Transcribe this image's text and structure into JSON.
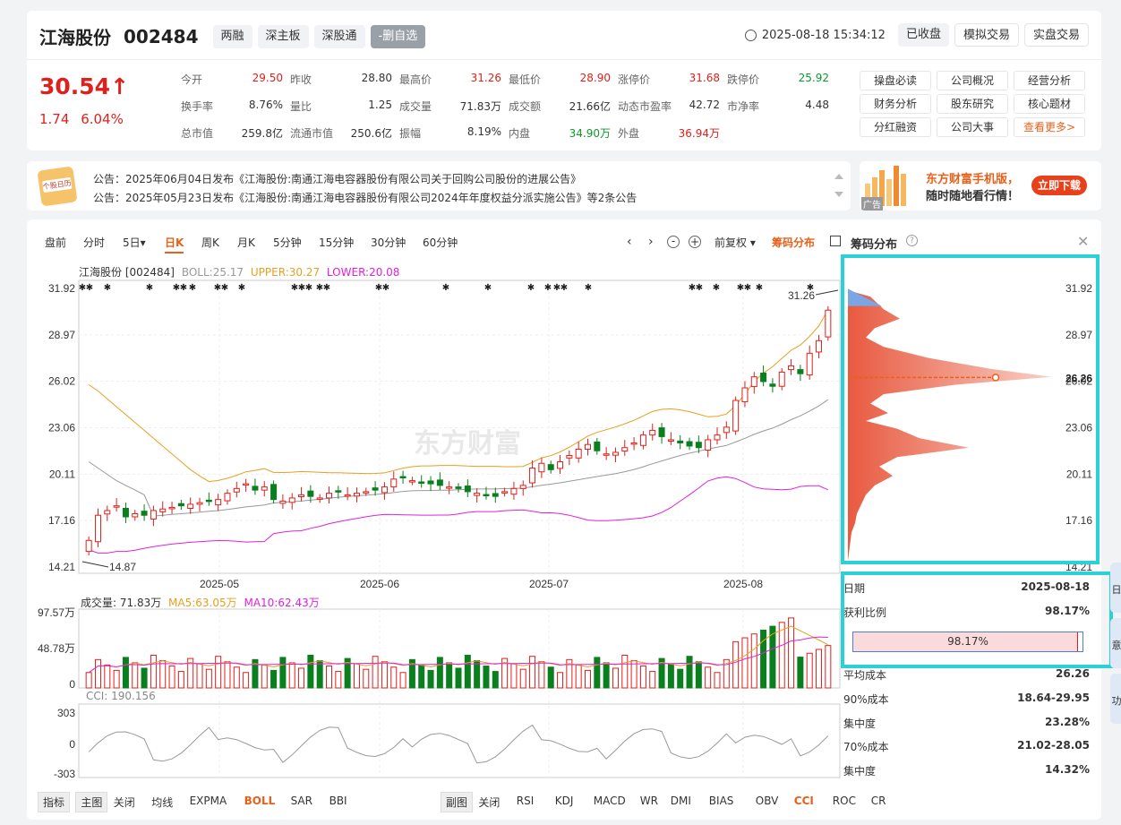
{
  "header": {
    "name": "江海股份",
    "code": "002484",
    "tags": [
      "两融",
      "深主板",
      "深股通",
      "-删自选"
    ],
    "datetime": "2025-08-18 15:34:12",
    "buttons": [
      "已收盘",
      "模拟交易",
      "实盘交易"
    ]
  },
  "quote": {
    "price": "30.54↑",
    "change": "1.74",
    "change_pct": "6.04%",
    "rows": [
      [
        [
          "今开",
          "29.50",
          "r"
        ],
        [
          "昨收",
          "28.80",
          ""
        ],
        [
          "最高价",
          "31.26",
          "r"
        ],
        [
          "最低价",
          "28.90",
          "r"
        ],
        [
          "涨停价",
          "31.68",
          "r"
        ],
        [
          "跌停价",
          "25.92",
          "g"
        ]
      ],
      [
        [
          "换手率",
          "8.76%",
          ""
        ],
        [
          "量比",
          "1.25",
          ""
        ],
        [
          "成交量",
          "71.83万",
          ""
        ],
        [
          "成交额",
          "21.66亿",
          ""
        ],
        [
          "动态市盈率",
          "42.72",
          ""
        ],
        [
          "市净率",
          "4.48",
          ""
        ]
      ],
      [
        [
          "总市值",
          "259.8亿",
          ""
        ],
        [
          "流通市值",
          "250.6亿",
          ""
        ],
        [
          "振幅",
          "8.19%",
          ""
        ],
        [
          "内盘",
          "34.90万",
          "g"
        ],
        [
          "外盘",
          "36.94万",
          "r"
        ],
        [
          "",
          "",
          " "
        ]
      ]
    ]
  },
  "functions": [
    "操盘必读",
    "公司概况",
    "经营分析",
    "财务分析",
    "股东研究",
    "核心题材",
    "分红融资",
    "公司大事",
    "查看更多>"
  ],
  "notices": {
    "icon_text": "个股日历",
    "items": [
      "公告：2025年06月04日发布《江海股份:南通江海电容器股份有限公司关于回购公司股份的进展公告》",
      "公告：2025年05月23日发布《江海股份:南通江海电容器股份有限公司2024年年度权益分派实施公告》等2条公告"
    ]
  },
  "ad": {
    "line1": "东方财富手机版，",
    "line2": "随时随地看行情！",
    "button": "立即下载",
    "tag": "广告"
  },
  "chart_tabs": [
    "盘前",
    "分时",
    "5日▾",
    "日K",
    "周K",
    "月K",
    "5分钟",
    "15分钟",
    "30分钟",
    "60分钟"
  ],
  "chart_tools": {
    "fq": "前复权 ▾",
    "chip": "筹码分布"
  },
  "kline": {
    "legend_name": "江海股份 [002484]",
    "boll": "BOLL:25.17",
    "upper": "UPPER:30.27",
    "lower": "LOWER:20.08",
    "y_ticks": [
      "31.92",
      "28.97",
      "26.02",
      "23.06",
      "20.11",
      "17.16",
      "14.21"
    ],
    "x_ticks": [
      "2025-05",
      "2025-06",
      "2025-07",
      "2025-08"
    ],
    "high_label": "31.26",
    "low_label": "14.87",
    "watermark": "东方财富"
  },
  "volume": {
    "label": "成交量: 71.83万",
    "ma5": "MA5:63.05万",
    "ma10": "MA10:62.43万",
    "y_ticks": [
      "97.57万",
      "48.78万",
      "0"
    ]
  },
  "cci": {
    "label": "CCI: 190.156",
    "y_ticks": [
      "303",
      "0",
      "-303"
    ]
  },
  "bottom_left": [
    "指标",
    "主图",
    "关闭",
    "均线",
    "EXPMA",
    "BOLL",
    "SAR",
    "BBI"
  ],
  "bottom_right": [
    "副图",
    "关闭",
    "RSI",
    "KDJ",
    "MACD",
    "WR",
    "DMI",
    "BIAS",
    "OBV",
    "CCI",
    "ROC",
    "CR"
  ],
  "chip_panel": {
    "title": "筹码分布",
    "y_ticks": [
      "31.92",
      "28.97",
      "26.02",
      "23.06",
      "20.11",
      "17.16",
      "14.21"
    ],
    "avg_cost": "26.26",
    "rows": [
      [
        "日期",
        "2025-08-18"
      ],
      [
        "获利比例",
        "98.17%"
      ],
      [
        "平均成本",
        "26.26"
      ],
      [
        "90%成本",
        "18.64-29.95"
      ],
      [
        "集中度",
        "23.28%"
      ],
      [
        "70%成本",
        "21.02-28.05"
      ],
      [
        "集中度",
        "14.32%"
      ]
    ],
    "profit_ratio": 0.9817,
    "profit_bar_label": "98.17%"
  },
  "right_edge": [
    "日",
    "意",
    "功"
  ],
  "chart_data": {
    "type": "candlestick",
    "y_range": [
      14.21,
      31.92
    ],
    "last_close": 30.54,
    "high": 31.26,
    "low": 14.87,
    "closes": [
      15.9,
      17.5,
      17.8,
      18.1,
      17.4,
      17.6,
      17.5,
      17.8,
      17.9,
      18.0,
      18.1,
      18.2,
      18.3,
      18.4,
      18.5,
      18.9,
      19.2,
      19.5,
      19.1,
      19.3,
      18.5,
      18.4,
      18.6,
      18.8,
      18.7,
      18.6,
      18.9,
      19.0,
      18.8,
      18.9,
      19.0,
      19.1,
      19.3,
      19.8,
      19.9,
      19.7,
      19.6,
      19.5,
      19.4,
      19.3,
      19.2,
      19.0,
      18.9,
      18.8,
      18.7,
      19.0,
      19.2,
      19.4,
      20.5,
      20.8,
      20.4,
      20.9,
      21.3,
      21.7,
      22.0,
      21.6,
      21.4,
      21.5,
      21.8,
      22.1,
      22.6,
      22.9,
      22.5,
      22.3,
      22.1,
      21.9,
      21.8,
      22.3,
      22.6,
      23.1,
      24.8,
      25.6,
      26.3,
      26.0,
      25.7,
      26.6,
      27.0,
      26.5,
      27.8,
      28.6,
      30.54
    ],
    "volume_max": 97.57,
    "cci_range": [
      -303,
      303
    ]
  }
}
